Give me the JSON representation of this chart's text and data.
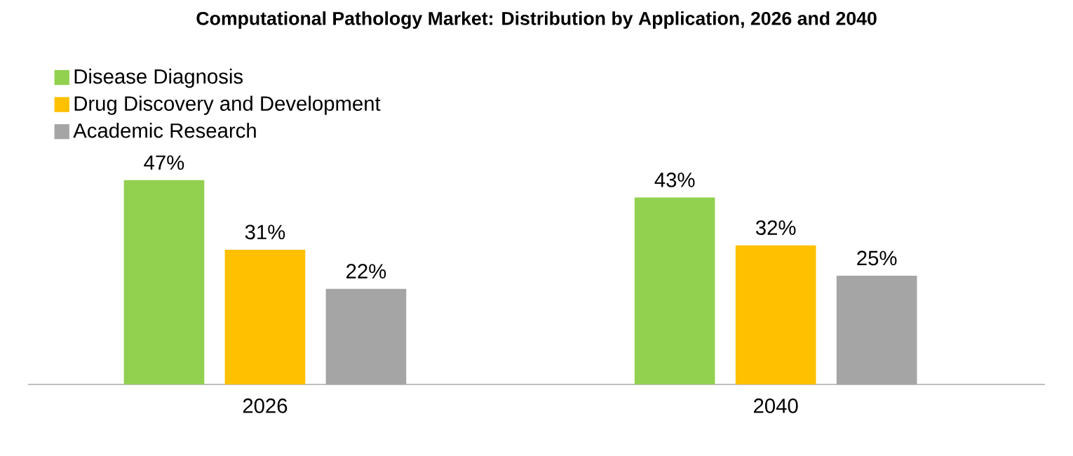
{
  "chart_data": {
    "type": "bar",
    "title": "Computational Pathology Market: Distribution by Application, 2026 and 2040",
    "categories": [
      "2026",
      "2040"
    ],
    "series": [
      {
        "name": "Disease Diagnosis",
        "color": "#92d050",
        "values": [
          47,
          43
        ],
        "value_labels": [
          "47%",
          "43%"
        ]
      },
      {
        "name": "Drug Discovery and Development",
        "color": "#ffc000",
        "values": [
          31,
          32
        ],
        "value_labels": [
          "31%",
          "32%"
        ]
      },
      {
        "name": "Academic Research",
        "color": "#a5a5a5",
        "values": [
          22,
          25
        ],
        "value_labels": [
          "22%",
          "25%"
        ]
      }
    ],
    "legend": "top left"
  }
}
